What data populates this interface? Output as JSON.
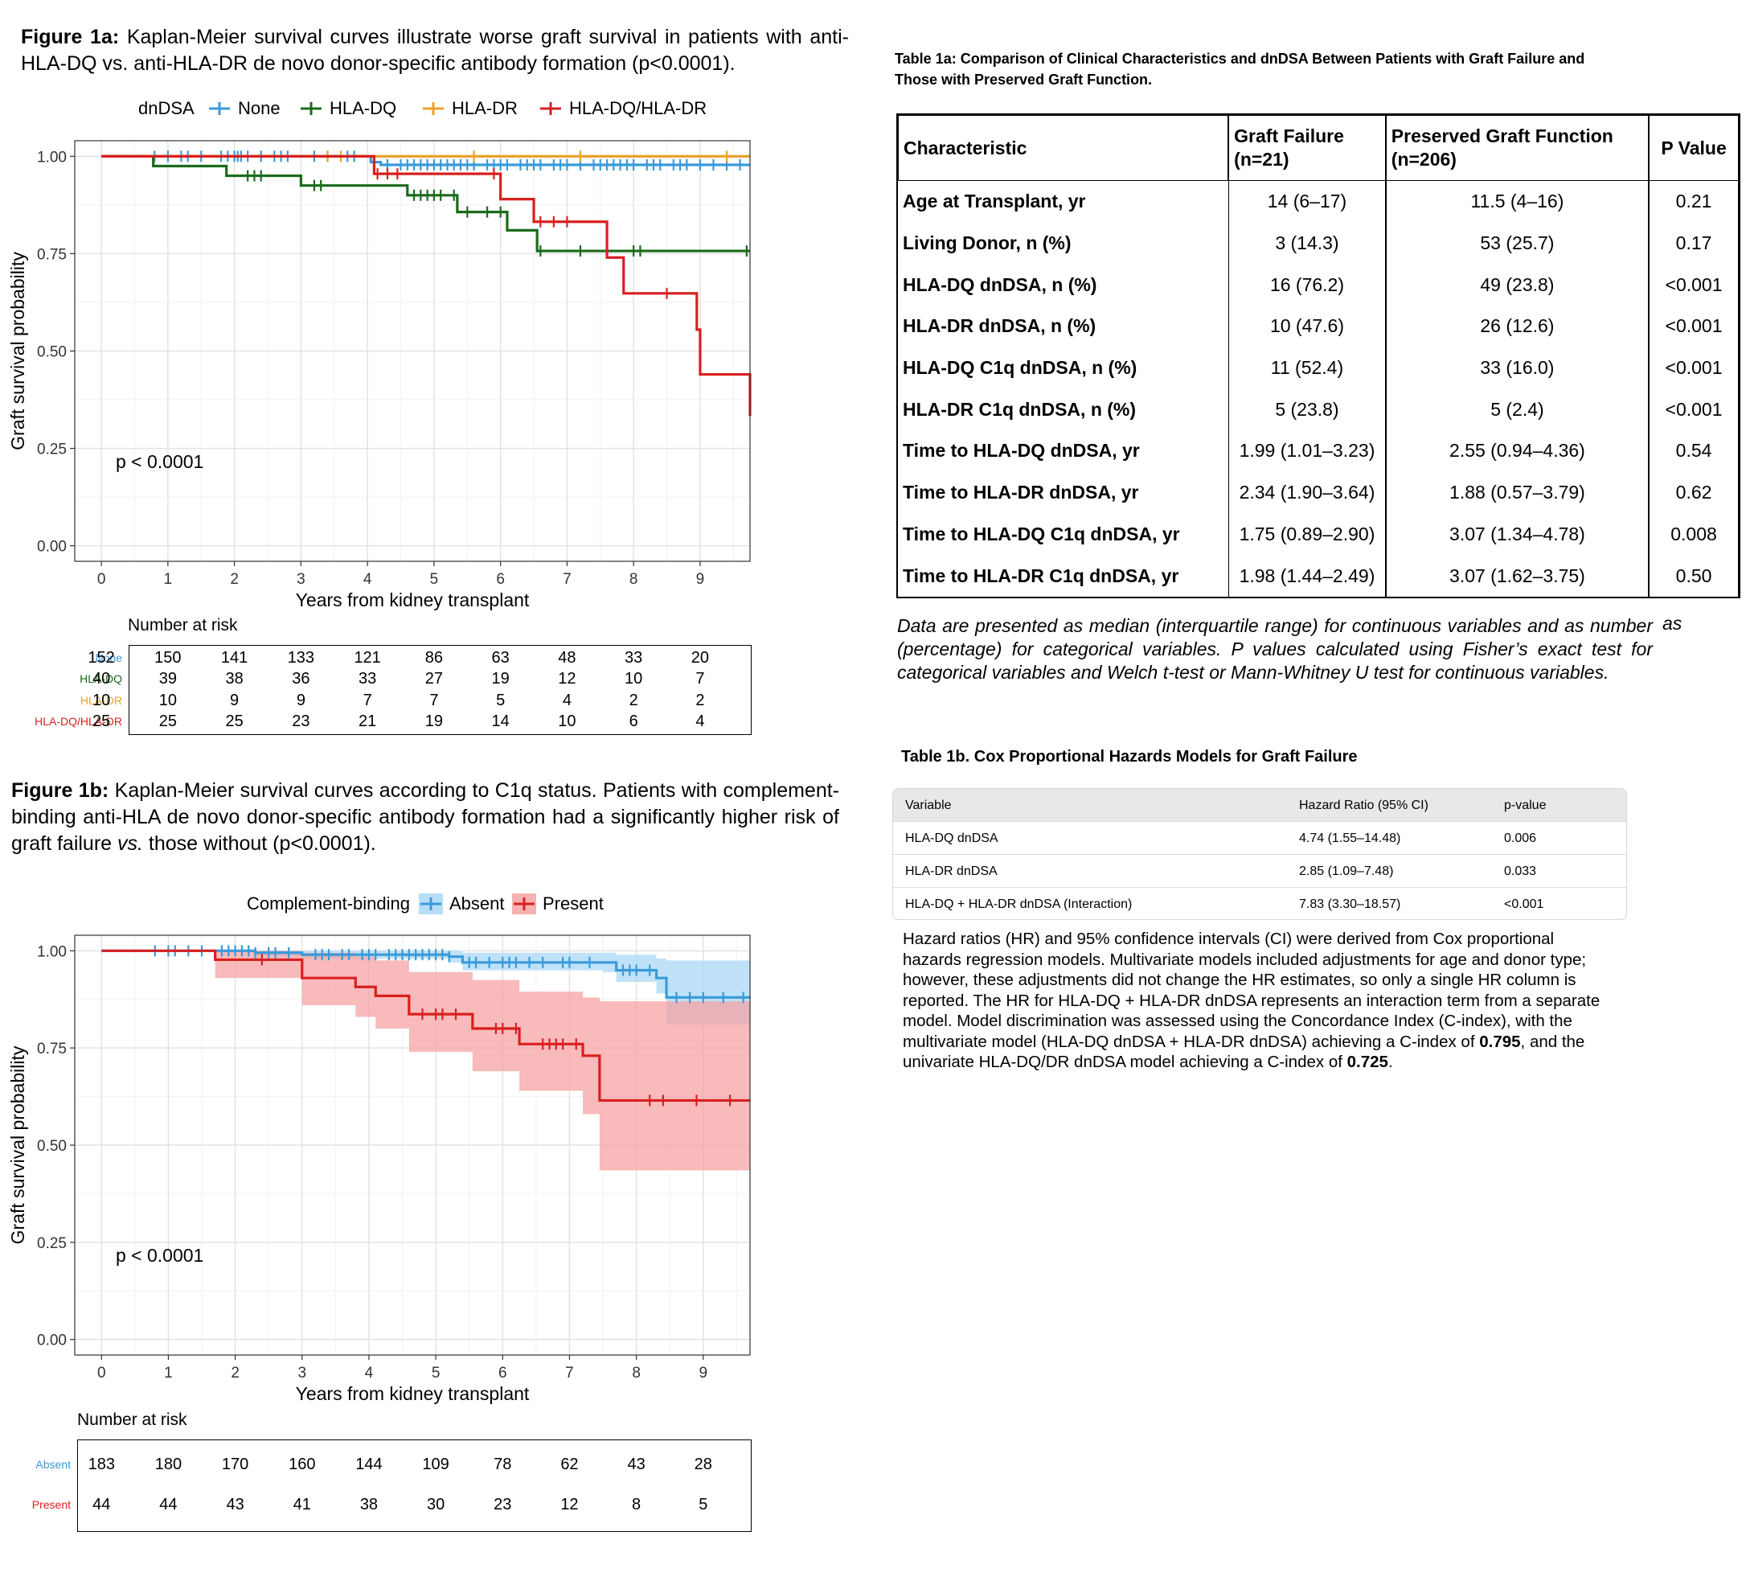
{
  "fig1a": {
    "caption_label": "Figure 1a:",
    "caption_text": "Kaplan-Meier survival curves illustrate worse graft survival in patients with anti-HLA-DQ vs. anti-HLA-DR de novo donor-specific antibody formation (p<0.0001).",
    "legend_title": "dnDSA",
    "pvalue": "p < 0.0001",
    "risk_title": "Number at risk"
  },
  "fig1b": {
    "caption_label": "Figure 1b:",
    "caption_pre": "Kaplan-Meier survival curves according to C1q status. Patients with complement-binding anti-HLA de novo donor-specific antibody formation had a significantly higher risk of graft failure",
    "caption_vs": "vs.",
    "caption_post": "those without (p<0.0001).",
    "legend_title": "Complement-binding",
    "pvalue": "p < 0.0001",
    "risk_title": "Number at risk"
  },
  "chart_data": [
    {
      "type": "line",
      "subtype": "step",
      "xlabel": "Years from kidney transplant",
      "ylabel": "Graft survival probability",
      "xlim": [
        -0.4,
        9.75
      ],
      "ylim": [
        -0.04,
        1.04
      ],
      "xticks": [
        0,
        1,
        2,
        3,
        4,
        5,
        6,
        7,
        8,
        9
      ],
      "yticks": [
        0.0,
        0.25,
        0.5,
        0.75,
        1.0
      ],
      "ytick_labels": [
        "0.00",
        "0.25",
        "0.50",
        "0.75",
        "1.00"
      ],
      "grid": true,
      "legend_position": "top",
      "series": [
        {
          "name": "None",
          "color": "#3a9ad9",
          "x": [
            0,
            3.95,
            4.05,
            4.2,
            9.75
          ],
          "y": [
            1.0,
            1.0,
            0.985,
            0.978,
            0.978
          ],
          "censor_x": [
            0.8,
            1.0,
            1.2,
            1.3,
            1.5,
            1.8,
            1.9,
            2.0,
            2.05,
            2.1,
            2.2,
            2.4,
            2.6,
            2.7,
            2.8,
            3.2,
            3.4,
            3.7,
            3.8,
            4.1,
            4.3,
            4.5,
            4.6,
            4.7,
            4.8,
            4.9,
            5.0,
            5.1,
            5.2,
            5.3,
            5.4,
            5.5,
            5.6,
            5.8,
            5.9,
            6.0,
            6.1,
            6.3,
            6.4,
            6.5,
            6.6,
            6.8,
            6.9,
            7.0,
            7.2,
            7.4,
            7.5,
            7.6,
            7.7,
            7.8,
            7.9,
            8.0,
            8.2,
            8.3,
            8.4,
            8.6,
            8.7,
            8.8,
            9.0,
            9.2,
            9.4,
            9.6
          ]
        },
        {
          "name": "HLA-DQ",
          "color": "#1b6a1b",
          "x": [
            0,
            0.78,
            1.88,
            3.0,
            4.6,
            5.35,
            6.1,
            6.55,
            9.75
          ],
          "y": [
            1.0,
            0.975,
            0.95,
            0.925,
            0.9,
            0.857,
            0.81,
            0.757,
            0.757
          ],
          "censor_x": [
            2.2,
            2.3,
            2.4,
            3.2,
            3.3,
            4.7,
            4.8,
            4.9,
            5.0,
            5.1,
            5.3,
            5.5,
            5.8,
            6.0,
            6.6,
            7.2,
            8.0,
            8.1,
            9.7
          ]
        },
        {
          "name": "HLA-DR",
          "color": "#e8a22c",
          "x": [
            0,
            9.75
          ],
          "y": [
            1.0,
            1.0
          ],
          "censor_x": [
            3.4,
            3.6,
            5.6,
            7.2,
            9.4
          ]
        },
        {
          "name": "HLA-DQ/HLA-DR",
          "color": "#d91f1f",
          "x": [
            0,
            3.95,
            4.1,
            5.9,
            6.0,
            6.5,
            7.55,
            7.6,
            7.85,
            8.95,
            9.0,
            9.75
          ],
          "y": [
            1.0,
            1.0,
            0.955,
            0.955,
            0.89,
            0.832,
            0.832,
            0.74,
            0.648,
            0.555,
            0.44,
            0.333
          ],
          "censor_x": [
            4.15,
            4.3,
            4.45,
            5.9,
            6.6,
            6.8,
            7.0,
            8.5
          ]
        }
      ],
      "risk_table": {
        "times": [
          0,
          1,
          2,
          3,
          4,
          5,
          6,
          7,
          8,
          9
        ],
        "rows": [
          {
            "label": "None",
            "color": "#3a9ad9",
            "values": [
              152,
              150,
              141,
              133,
              121,
              86,
              63,
              48,
              33,
              20
            ]
          },
          {
            "label": "HLA-DQ",
            "color": "#1b6a1b",
            "values": [
              40,
              39,
              38,
              36,
              33,
              27,
              19,
              12,
              10,
              7
            ]
          },
          {
            "label": "HLA-DR",
            "color": "#e8a22c",
            "values": [
              10,
              10,
              9,
              9,
              7,
              7,
              5,
              4,
              2,
              2
            ]
          },
          {
            "label": "HLA-DQ/HLA-DR",
            "color": "#d91f1f",
            "values": [
              25,
              25,
              25,
              23,
              21,
              19,
              14,
              10,
              6,
              4
            ]
          }
        ]
      }
    },
    {
      "type": "line",
      "subtype": "step",
      "xlabel": "Years from kidney transplant",
      "ylabel": "Graft survival probability",
      "xlim": [
        -0.4,
        9.7
      ],
      "ylim": [
        -0.04,
        1.04
      ],
      "xticks": [
        0,
        1,
        2,
        3,
        4,
        5,
        6,
        7,
        8,
        9
      ],
      "yticks": [
        0.0,
        0.25,
        0.5,
        0.75,
        1.0
      ],
      "ytick_labels": [
        "0.00",
        "0.25",
        "0.50",
        "0.75",
        "1.00"
      ],
      "grid": true,
      "legend_position": "top",
      "series": [
        {
          "name": "Absent",
          "color": "#3a9ad9",
          "band_color": "#a9d8f5",
          "x": [
            0,
            2.3,
            3.0,
            5.2,
            5.4,
            7.5,
            7.7,
            8.3,
            8.45,
            9.7
          ],
          "y": [
            1.0,
            0.995,
            0.99,
            0.985,
            0.97,
            0.97,
            0.95,
            0.93,
            0.88,
            0.88
          ],
          "band_lower": [
            1.0,
            0.985,
            0.98,
            0.97,
            0.95,
            0.945,
            0.92,
            0.89,
            0.81,
            0.8
          ],
          "band_upper": [
            1.0,
            1.0,
            1.0,
            1.0,
            0.995,
            0.995,
            0.99,
            0.98,
            0.975,
            0.975
          ],
          "censor_x": [
            0.8,
            1.0,
            1.1,
            1.3,
            1.5,
            1.8,
            1.9,
            2.0,
            2.1,
            2.2,
            2.3,
            2.5,
            2.6,
            2.8,
            3.2,
            3.3,
            3.4,
            3.6,
            3.7,
            3.9,
            4.0,
            4.1,
            4.3,
            4.4,
            4.5,
            4.6,
            4.7,
            4.8,
            4.9,
            5.0,
            5.1,
            5.2,
            5.5,
            5.6,
            5.8,
            6.0,
            6.1,
            6.2,
            6.4,
            6.6,
            6.9,
            7.0,
            7.3,
            7.8,
            7.9,
            8.0,
            8.2,
            8.6,
            8.8,
            9.0,
            9.3,
            9.6
          ]
        },
        {
          "name": "Present",
          "color": "#d91f1f",
          "band_color": "#f5a3a3",
          "x": [
            0,
            1.7,
            3.0,
            3.8,
            4.1,
            4.6,
            5.55,
            6.25,
            7.2,
            7.45,
            9.7
          ],
          "y": [
            1.0,
            0.977,
            0.93,
            0.907,
            0.884,
            0.837,
            0.8,
            0.76,
            0.73,
            0.615,
            0.615
          ],
          "band_lower": [
            1.0,
            0.93,
            0.86,
            0.83,
            0.8,
            0.74,
            0.69,
            0.64,
            0.58,
            0.435,
            0.435
          ],
          "band_upper": [
            1.0,
            1.0,
            0.995,
            0.985,
            0.975,
            0.945,
            0.925,
            0.895,
            0.88,
            0.87,
            0.87
          ],
          "censor_x": [
            2.4,
            4.8,
            5.0,
            5.1,
            5.3,
            5.9,
            6.0,
            6.2,
            6.6,
            6.7,
            6.8,
            6.9,
            7.1,
            8.2,
            8.4,
            8.9,
            9.4
          ]
        }
      ],
      "risk_table": {
        "times": [
          0,
          1,
          2,
          3,
          4,
          5,
          6,
          7,
          8,
          9
        ],
        "rows": [
          {
            "label": "Absent",
            "color": "#3a9ad9",
            "values": [
              183,
              180,
              170,
              160,
              144,
              109,
              78,
              62,
              43,
              28
            ]
          },
          {
            "label": "Present",
            "color": "#d91f1f",
            "values": [
              44,
              44,
              43,
              41,
              38,
              30,
              23,
              12,
              8,
              5
            ]
          }
        ]
      }
    }
  ],
  "table1a": {
    "title_label": "Table 1a:",
    "title_text": "Comparison of Clinical Characteristics and dnDSA Between Patients with Graft Failure and Those with Preserved Graft Function.",
    "headers": [
      "Characteristic",
      "Graft Failure (n=21)",
      "Preserved Graft Function (n=206)",
      "P Value"
    ],
    "rows": [
      [
        "Age at Transplant, yr",
        "14 (6–17)",
        "11.5 (4–16)",
        "0.21"
      ],
      [
        "Living Donor, n (%)",
        "3 (14.3)",
        "53 (25.7)",
        "0.17"
      ],
      [
        "HLA-DQ dnDSA, n (%)",
        "16 (76.2)",
        "49 (23.8)",
        "<0.001"
      ],
      [
        "HLA-DR dnDSA, n (%)",
        "10 (47.6)",
        "26 (12.6)",
        "<0.001"
      ],
      [
        "HLA-DQ C1q dnDSA, n (%)",
        "11 (52.4)",
        "33 (16.0)",
        "<0.001"
      ],
      [
        "HLA-DR C1q dnDSA, n (%)",
        "5 (23.8)",
        "5 (2.4)",
        "<0.001"
      ],
      [
        "Time to HLA-DQ dnDSA, yr",
        "1.99 (1.01–3.23)",
        "2.55 (0.94–4.36)",
        "0.54"
      ],
      [
        "Time to HLA-DR dnDSA, yr",
        "2.34 (1.90–3.64)",
        "1.88 (0.57–3.79)",
        "0.62"
      ],
      [
        "Time to HLA-DQ C1q dnDSA, yr",
        "1.75 (0.89–2.90)",
        "3.07 (1.34–4.78)",
        "0.008"
      ],
      [
        "Time to HLA-DR C1q dnDSA, yr",
        "1.98 (1.44–2.49)",
        "3.07 (1.62–3.75)",
        "0.50"
      ]
    ],
    "note": "Data are presented as median (interquartile range) for continuous variables and as number (percentage) for categorical variables. P values calculated using Fisher’s exact test for categorical variables and Welch t-test or Mann-Whitney U test for continuous variables.",
    "note_extra": "as"
  },
  "table1b": {
    "title_label": "Table 1b.",
    "title_text": "Cox Proportional Hazards Models for Graft Failure",
    "headers": [
      "Variable",
      "Hazard Ratio (95% CI)",
      "p-value"
    ],
    "rows": [
      [
        "HLA-DQ dnDSA",
        "4.74 (1.55–14.48)",
        "0.006"
      ],
      [
        "HLA-DR dnDSA",
        "2.85 (1.09–7.48)",
        "0.033"
      ],
      [
        "HLA-DQ + HLA-DR dnDSA (Interaction)",
        "7.83 (3.30–18.57)",
        "<0.001"
      ]
    ],
    "note_pre": "Hazard ratios (HR) and 95% confidence intervals (CI) were derived from Cox proportional hazards regression models. Multivariate models included adjustments for age and donor type; however, these adjustments did not change the HR estimates, so only a single HR column is reported. The HR for HLA-DQ + HLA-DR dnDSA represents an interaction term from a separate model. Model discrimination was assessed using the Concordance Index (C-index), with the multivariate model (HLA-DQ dnDSA + HLA-DR dnDSA) achieving a C-index of",
    "note_c1": "0.795",
    "note_mid": ", and the univariate HLA-DQ/DR dnDSA model achieving a C-index of",
    "note_c2": "0.725",
    "note_end": "."
  }
}
